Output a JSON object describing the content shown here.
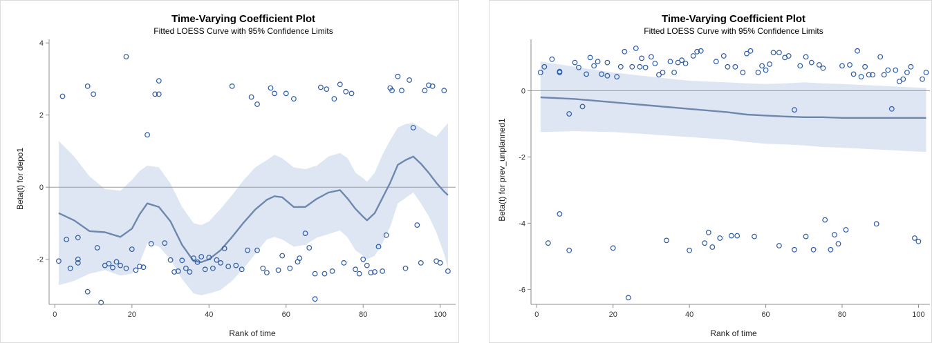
{
  "colors": {
    "band": "#dde6f2",
    "curve": "#6f87ad",
    "marker": "#2a5aa8",
    "refline": "#9a9a9a",
    "axis": "#8c8c8c"
  },
  "chart_data": [
    {
      "type": "scatter",
      "title": "Time-Varying Coefficient Plot",
      "subtitle": "Fitted LOESS Curve with 95% Confidence Limits",
      "xlabel": "Rank of time",
      "ylabel": "Beta(t) for depo1",
      "xlim": [
        -1.5,
        104
      ],
      "ylim": [
        -3.25,
        4.1
      ],
      "xticks": [
        0,
        20,
        40,
        60,
        80,
        100
      ],
      "yticks": [
        -2,
        0,
        2,
        4
      ],
      "reference_line_y": 0,
      "points": [
        [
          1,
          -2.05
        ],
        [
          2,
          2.52
        ],
        [
          3,
          -1.45
        ],
        [
          4,
          -2.25
        ],
        [
          6,
          -2.0
        ],
        [
          6,
          -2.1
        ],
        [
          6,
          -1.4
        ],
        [
          8.5,
          2.8
        ],
        [
          8.5,
          -2.9
        ],
        [
          10,
          2.58
        ],
        [
          11,
          -1.68
        ],
        [
          12,
          -3.2
        ],
        [
          13,
          -2.17
        ],
        [
          14,
          -2.12
        ],
        [
          15,
          -2.23
        ],
        [
          16,
          -2.07
        ],
        [
          17,
          -2.17
        ],
        [
          18.5,
          3.62
        ],
        [
          18.5,
          -2.25
        ],
        [
          20,
          -1.72
        ],
        [
          21,
          -2.3
        ],
        [
          22,
          -2.2
        ],
        [
          23,
          -2.22
        ],
        [
          24,
          1.45
        ],
        [
          25,
          -1.57
        ],
        [
          26,
          2.58
        ],
        [
          27,
          2.95
        ],
        [
          27,
          2.58
        ],
        [
          28.5,
          -1.55
        ],
        [
          30,
          -2.02
        ],
        [
          31,
          -2.35
        ],
        [
          32,
          -2.33
        ],
        [
          33,
          -2.03
        ],
        [
          34,
          -2.25
        ],
        [
          35,
          -2.35
        ],
        [
          36,
          -1.97
        ],
        [
          37,
          -2.08
        ],
        [
          38,
          -1.93
        ],
        [
          39,
          -2.28
        ],
        [
          40,
          -1.95
        ],
        [
          41,
          -2.25
        ],
        [
          42,
          -2.02
        ],
        [
          43,
          -2.1
        ],
        [
          44,
          -1.7
        ],
        [
          45,
          -2.2
        ],
        [
          46,
          2.8
        ],
        [
          47,
          -2.17
        ],
        [
          48.5,
          -2.28
        ],
        [
          50,
          -1.75
        ],
        [
          51,
          2.5
        ],
        [
          52.5,
          -1.75
        ],
        [
          52.5,
          2.3
        ],
        [
          54,
          -2.25
        ],
        [
          55,
          -2.37
        ],
        [
          56,
          2.75
        ],
        [
          57,
          2.6
        ],
        [
          58,
          -2.3
        ],
        [
          59,
          -1.9
        ],
        [
          60,
          2.6
        ],
        [
          61,
          -2.25
        ],
        [
          62,
          2.45
        ],
        [
          63,
          -2.07
        ],
        [
          63.5,
          -1.97
        ],
        [
          65,
          -1.28
        ],
        [
          66,
          -1.68
        ],
        [
          67.5,
          -3.1
        ],
        [
          67.5,
          -2.4
        ],
        [
          69,
          2.77
        ],
        [
          70,
          -2.4
        ],
        [
          70.5,
          2.72
        ],
        [
          72,
          -2.33
        ],
        [
          72.5,
          2.45
        ],
        [
          74,
          2.85
        ],
        [
          75,
          -2.1
        ],
        [
          75.5,
          2.65
        ],
        [
          77,
          2.6
        ],
        [
          78,
          -2.28
        ],
        [
          79,
          -2.4
        ],
        [
          80,
          -2.0
        ],
        [
          81,
          -2.17
        ],
        [
          82,
          -2.37
        ],
        [
          83,
          -2.35
        ],
        [
          84,
          -1.65
        ],
        [
          85,
          -2.33
        ],
        [
          86,
          -1.33
        ],
        [
          87,
          2.75
        ],
        [
          87.5,
          2.68
        ],
        [
          89,
          3.07
        ],
        [
          90,
          2.68
        ],
        [
          91,
          -2.25
        ],
        [
          92,
          2.97
        ],
        [
          93,
          1.65
        ],
        [
          94,
          -1.05
        ],
        [
          95,
          -2.1
        ],
        [
          96,
          2.68
        ],
        [
          97,
          2.83
        ],
        [
          98,
          2.8
        ],
        [
          99,
          -2.05
        ],
        [
          100,
          -2.1
        ],
        [
          101,
          2.68
        ],
        [
          102,
          -2.33
        ]
      ],
      "fit": {
        "x": [
          1,
          5,
          9,
          13,
          17,
          20,
          22,
          24,
          27,
          30,
          33,
          36,
          38,
          40,
          43,
          46,
          49,
          52,
          55,
          57,
          59,
          62,
          65,
          68,
          71,
          74,
          76,
          78,
          80,
          81,
          83,
          85,
          87,
          89,
          91,
          93,
          95,
          97,
          99,
          101,
          102
        ],
        "y": [
          -0.72,
          -0.92,
          -1.22,
          -1.25,
          -1.38,
          -1.15,
          -0.75,
          -0.45,
          -0.55,
          -0.95,
          -1.6,
          -2.05,
          -2.08,
          -2.0,
          -1.75,
          -1.38,
          -0.98,
          -0.62,
          -0.35,
          -0.25,
          -0.28,
          -0.55,
          -0.55,
          -0.32,
          -0.15,
          -0.08,
          -0.32,
          -0.6,
          -0.82,
          -0.92,
          -0.72,
          -0.3,
          0.12,
          0.62,
          0.75,
          0.85,
          0.65,
          0.4,
          0.12,
          -0.12,
          -0.22
        ],
        "upper": [
          1.28,
          0.85,
          0.3,
          -0.05,
          -0.1,
          0.2,
          0.45,
          0.6,
          0.55,
          0.1,
          -0.55,
          -1.0,
          -1.05,
          -0.95,
          -0.6,
          -0.22,
          0.2,
          0.55,
          0.75,
          0.9,
          0.8,
          0.55,
          0.5,
          0.6,
          0.85,
          0.95,
          0.8,
          0.4,
          0.25,
          0.15,
          0.4,
          0.9,
          1.3,
          1.65,
          1.75,
          1.78,
          1.65,
          1.5,
          1.4,
          1.65,
          1.78
        ],
        "lower": [
          -2.72,
          -2.6,
          -2.4,
          -2.3,
          -2.45,
          -2.4,
          -2.1,
          -1.55,
          -1.65,
          -2.0,
          -2.55,
          -2.95,
          -3.0,
          -2.95,
          -2.85,
          -2.6,
          -2.25,
          -1.85,
          -1.45,
          -1.38,
          -1.45,
          -1.65,
          -1.6,
          -1.4,
          -1.3,
          -1.2,
          -1.4,
          -1.75,
          -1.9,
          -2.0,
          -1.9,
          -1.55,
          -1.1,
          -0.45,
          -0.3,
          -0.15,
          -0.45,
          -0.8,
          -1.25,
          -1.85,
          -2.25
        ]
      }
    },
    {
      "type": "scatter",
      "title": "Time-Varying Coefficient Plot",
      "subtitle": "Fitted LOESS Curve with 95% Confidence Limits",
      "xlabel": "Rank of time",
      "ylabel": "Beta(t) for prev_unplanned1",
      "xlim": [
        -1.5,
        103
      ],
      "ylim": [
        -6.45,
        1.55
      ],
      "xticks": [
        0,
        20,
        40,
        60,
        80,
        100
      ],
      "yticks": [
        -6,
        -4,
        -2,
        0
      ],
      "reference_line_y": 0,
      "points": [
        [
          1,
          0.55
        ],
        [
          2,
          0.72
        ],
        [
          3,
          -4.6
        ],
        [
          4,
          0.95
        ],
        [
          6,
          0.55
        ],
        [
          6,
          0.58
        ],
        [
          6,
          -3.72
        ],
        [
          8.5,
          -0.7
        ],
        [
          8.5,
          -4.82
        ],
        [
          10,
          0.85
        ],
        [
          11,
          0.7
        ],
        [
          12,
          -0.48
        ],
        [
          13,
          0.5
        ],
        [
          14,
          1.0
        ],
        [
          15,
          0.75
        ],
        [
          16,
          0.88
        ],
        [
          17,
          0.5
        ],
        [
          18.5,
          0.45
        ],
        [
          18.5,
          0.85
        ],
        [
          20,
          -4.75
        ],
        [
          21,
          0.42
        ],
        [
          22,
          0.72
        ],
        [
          23,
          1.18
        ],
        [
          24,
          -6.25
        ],
        [
          25,
          0.72
        ],
        [
          26,
          1.28
        ],
        [
          27,
          0.72
        ],
        [
          27.5,
          0.98
        ],
        [
          28.5,
          0.7
        ],
        [
          30,
          1.02
        ],
        [
          31,
          0.82
        ],
        [
          32,
          0.48
        ],
        [
          33,
          0.55
        ],
        [
          34,
          -4.52
        ],
        [
          35,
          0.88
        ],
        [
          36,
          0.55
        ],
        [
          37,
          0.85
        ],
        [
          38,
          0.92
        ],
        [
          39,
          0.82
        ],
        [
          40,
          -4.82
        ],
        [
          41,
          1.05
        ],
        [
          42,
          1.18
        ],
        [
          43,
          1.2
        ],
        [
          44,
          -4.6
        ],
        [
          45,
          -4.28
        ],
        [
          46,
          -4.72
        ],
        [
          47,
          0.88
        ],
        [
          48,
          -4.45
        ],
        [
          49,
          1.05
        ],
        [
          50,
          0.72
        ],
        [
          51,
          -4.38
        ],
        [
          52,
          0.72
        ],
        [
          52.5,
          -4.38
        ],
        [
          54,
          0.55
        ],
        [
          55,
          1.12
        ],
        [
          56,
          1.2
        ],
        [
          57,
          -4.4
        ],
        [
          58,
          0.55
        ],
        [
          59,
          0.75
        ],
        [
          60,
          0.62
        ],
        [
          61,
          0.8
        ],
        [
          62,
          1.15
        ],
        [
          63.5,
          1.15
        ],
        [
          63.5,
          -4.68
        ],
        [
          65,
          1.0
        ],
        [
          66,
          1.05
        ],
        [
          67.5,
          -0.58
        ],
        [
          67.5,
          -4.8
        ],
        [
          69,
          0.75
        ],
        [
          70.5,
          1.02
        ],
        [
          70.5,
          -4.4
        ],
        [
          72,
          0.85
        ],
        [
          72.5,
          -4.8
        ],
        [
          74,
          0.78
        ],
        [
          75,
          0.68
        ],
        [
          75.5,
          -3.9
        ],
        [
          77,
          -4.8
        ],
        [
          78,
          -4.35
        ],
        [
          79,
          -4.62
        ],
        [
          80,
          0.75
        ],
        [
          81,
          -4.2
        ],
        [
          82,
          0.78
        ],
        [
          83,
          0.5
        ],
        [
          84,
          1.2
        ],
        [
          85,
          0.42
        ],
        [
          86,
          0.72
        ],
        [
          87,
          0.48
        ],
        [
          88,
          0.48
        ],
        [
          89,
          -4.02
        ],
        [
          90,
          1.02
        ],
        [
          91,
          0.48
        ],
        [
          92,
          0.62
        ],
        [
          93,
          -0.55
        ],
        [
          94,
          0.62
        ],
        [
          95,
          0.28
        ],
        [
          96,
          0.35
        ],
        [
          97,
          0.55
        ],
        [
          98,
          0.72
        ],
        [
          99,
          -4.45
        ],
        [
          100,
          -4.55
        ],
        [
          101,
          0.35
        ],
        [
          102,
          0.55
        ]
      ],
      "fit": {
        "x": [
          1,
          10,
          20,
          30,
          40,
          50,
          55,
          60,
          65,
          70,
          75,
          80,
          90,
          102
        ],
        "y": [
          -0.2,
          -0.25,
          -0.35,
          -0.45,
          -0.55,
          -0.65,
          -0.72,
          -0.75,
          -0.78,
          -0.8,
          -0.8,
          -0.82,
          -0.82,
          -0.82
        ],
        "upper": [
          0.88,
          0.72,
          0.55,
          0.42,
          0.3,
          0.25,
          0.22,
          0.2,
          0.22,
          0.25,
          0.22,
          0.2,
          0.15,
          0.08
        ],
        "lower": [
          -1.25,
          -1.22,
          -1.25,
          -1.32,
          -1.4,
          -1.48,
          -1.55,
          -1.6,
          -1.62,
          -1.65,
          -1.7,
          -1.72,
          -1.78,
          -1.85
        ]
      }
    }
  ]
}
